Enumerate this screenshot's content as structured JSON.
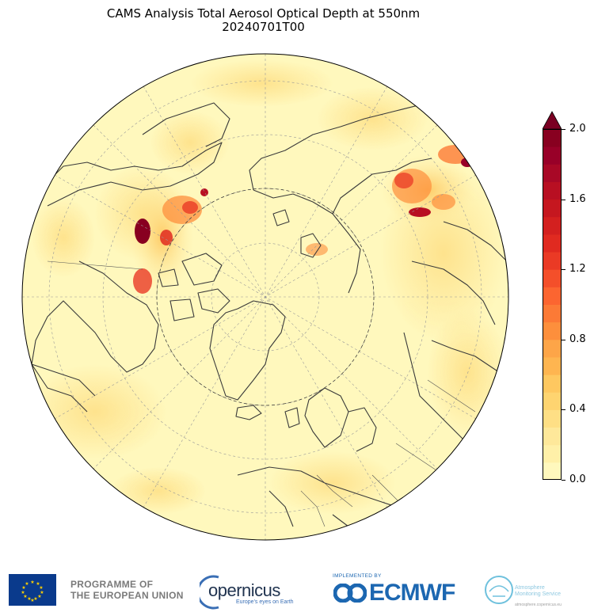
{
  "title": {
    "line1": "CAMS Analysis Total Aerosol Optical Depth at 550nm",
    "line2": "20240701T00"
  },
  "map": {
    "projection": "north-polar-stereographic",
    "ocean_land_color": "#fff8bd",
    "coastline_color": "#3a3a3a"
  },
  "colorbar": {
    "min": 0.0,
    "max": 2.0,
    "extend": "max",
    "tick_labels": [
      "0.0",
      "0.4",
      "0.8",
      "1.2",
      "1.6",
      "2.0"
    ],
    "levels": [
      0.0,
      0.1,
      0.2,
      0.3,
      0.4,
      0.5,
      0.6,
      0.7,
      0.8,
      0.9,
      1.0,
      1.1,
      1.2,
      1.3,
      1.4,
      1.5,
      1.6,
      1.7,
      1.8,
      1.9,
      2.0
    ],
    "colors": [
      "#fff8bd",
      "#fff0a8",
      "#fee89a",
      "#fedf85",
      "#fed470",
      "#fec860",
      "#feb550",
      "#fda548",
      "#fd8f3c",
      "#fc7a36",
      "#fc6530",
      "#f44f2a",
      "#ea3a25",
      "#e02a20",
      "#d3201f",
      "#c5171f",
      "#b80f22",
      "#a80826",
      "#980028",
      "#880020"
    ],
    "extend_color": "#7a0022"
  },
  "footer": {
    "eu_line1": "PROGRAMME OF",
    "eu_line2": "THE EUROPEAN UNION",
    "copernicus": "opernicus",
    "copernicus_tag": "Europe's eyes on Earth",
    "implemented_by": "IMPLEMENTED BY",
    "ecmwf": "ECMWF",
    "ams_line1": "Atmosphere",
    "ams_line2": "Monitoring Service",
    "ams_url": "atmosphere.copernicus.eu"
  }
}
